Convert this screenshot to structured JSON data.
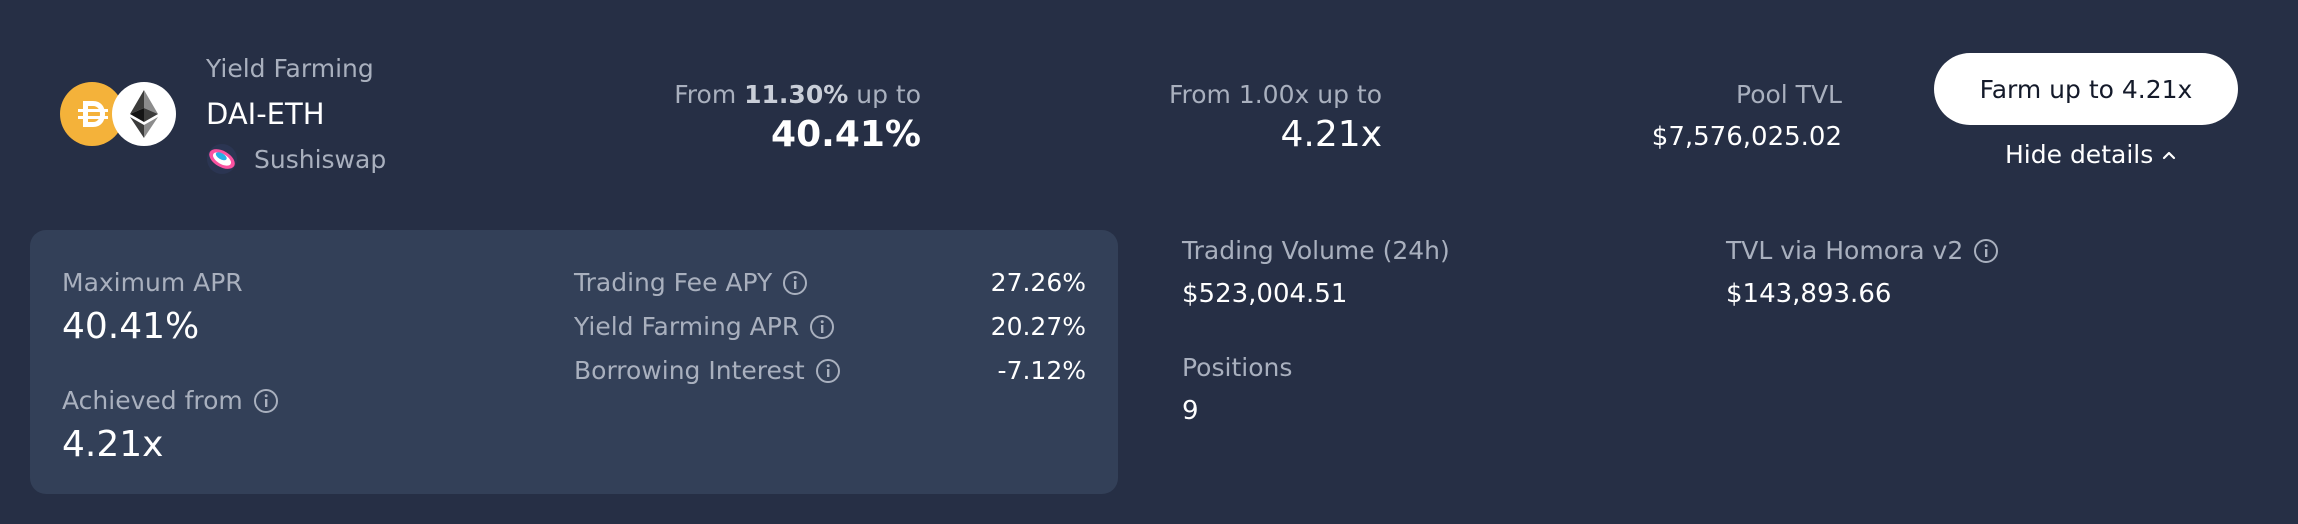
{
  "pool": {
    "category": "Yield Farming",
    "name": "DAI-ETH",
    "dex": "Sushiswap",
    "token_icons": [
      "dai-icon",
      "eth-icon"
    ]
  },
  "apr_range": {
    "from_prefix": "From",
    "from_value": "11.30%",
    "up_to": "up to",
    "max": "40.41%"
  },
  "leverage_range": {
    "text": "From 1.00x up to",
    "max": "4.21x"
  },
  "pool_tvl": {
    "label": "Pool TVL",
    "value": "$7,576,025.02"
  },
  "actions": {
    "farm_label": "Farm up to 4.21x",
    "hide_details_label": "Hide details"
  },
  "details": {
    "max_apr_label": "Maximum APR",
    "max_apr_value": "40.41%",
    "achieved_label": "Achieved from",
    "achieved_value": "4.21x",
    "breakdown": [
      {
        "label": "Trading Fee APY",
        "value": "27.26%"
      },
      {
        "label": "Yield Farming APR",
        "value": "20.27%"
      },
      {
        "label": "Borrowing Interest",
        "value": "-7.12%"
      }
    ]
  },
  "stats": {
    "trading_volume_label": "Trading Volume (24h)",
    "trading_volume_value": "$523,004.51",
    "tvl_homora_label": "TVL via Homora v2",
    "tvl_homora_value": "$143,893.66",
    "positions_label": "Positions",
    "positions_value": "9"
  },
  "colors": {
    "background": "#262f45",
    "panel": "#334058",
    "muted_text": "#a9b0be",
    "dai": "#f4b23a",
    "button": "#ffffff"
  }
}
